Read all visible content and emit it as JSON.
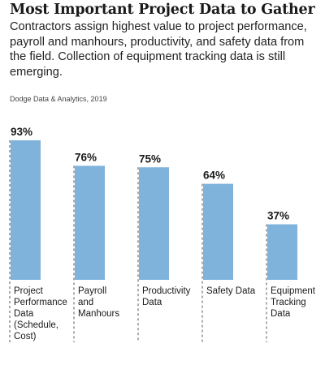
{
  "header": {
    "title": "Most Important Project Data to Gather",
    "subtitle": "Contractors assign highest value to project performance, payroll and manhours, productivity, and safety data from the field. Collection of equipment tracking data is still emerging.",
    "source": "Dodge Data & Analytics, 2019"
  },
  "colors": {
    "bar": "#7fb3dc",
    "divider": "#555555"
  },
  "chart_data": {
    "type": "bar",
    "title": "Most Important Project Data to Gather",
    "categories": [
      "Project Performance Data (Schedule, Cost)",
      "Payroll and Manhours",
      "Productivity Data",
      "Safety Data",
      "Equipment Tracking Data"
    ],
    "category_lines": [
      [
        "Project",
        "Performance",
        "Data",
        "(Schedule,",
        "Cost)"
      ],
      [
        "Payroll",
        "and",
        "Manhours"
      ],
      [
        "Productivity",
        "Data"
      ],
      [
        "Safety Data"
      ],
      [
        "Equipment",
        "Tracking",
        "Data"
      ]
    ],
    "values": [
      93,
      76,
      75,
      64,
      37
    ],
    "value_labels": [
      "93%",
      "76%",
      "75%",
      "64%",
      "37%"
    ],
    "ylim": [
      0,
      100
    ],
    "grid": false,
    "legend": "none"
  }
}
